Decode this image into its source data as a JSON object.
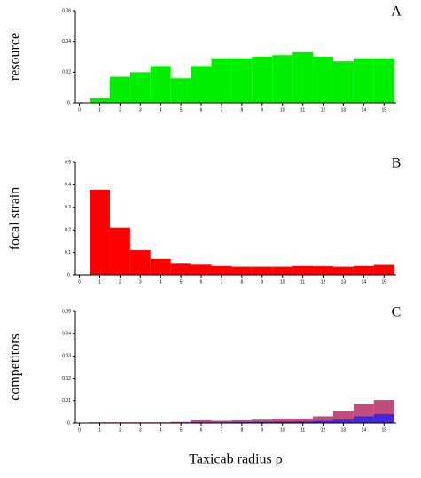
{
  "chart_data": [
    {
      "type": "histogram",
      "ylabel": "resource",
      "panel_label": "A",
      "bins": [
        0.5,
        1.5,
        2.5,
        3.5,
        4.5,
        5.5,
        6.5,
        7.5,
        8.5,
        9.5,
        10.5,
        11.5,
        12.5,
        13.5,
        14.5,
        15.5
      ],
      "series": [
        {
          "color": "#00ee00",
          "values": [
            0.003,
            0.017,
            0.02,
            0.024,
            0.016,
            0.024,
            0.029,
            0.029,
            0.03,
            0.031,
            0.033,
            0.03,
            0.027,
            0.029,
            0.029
          ]
        }
      ],
      "xlim": [
        -0.2,
        15.6
      ],
      "xticks": [
        0,
        1,
        2,
        3,
        4,
        5,
        6,
        7,
        8,
        9,
        10,
        11,
        12,
        13,
        14,
        15
      ],
      "ylim": [
        0,
        0.06
      ],
      "yticks": [
        {
          "value": 0,
          "label": "0."
        },
        0.02,
        0.04,
        0.06
      ]
    },
    {
      "type": "histogram",
      "ylabel": "focal strain",
      "panel_label": "B",
      "bins": [
        0.5,
        1.5,
        2.5,
        3.5,
        4.5,
        5.5,
        6.5,
        7.5,
        8.5,
        9.5,
        10.5,
        11.5,
        12.5,
        13.5,
        14.5,
        15.5
      ],
      "series": [
        {
          "color": "#ff0000",
          "values": [
            0.378,
            0.21,
            0.11,
            0.071,
            0.05,
            0.046,
            0.04,
            0.037,
            0.037,
            0.037,
            0.04,
            0.039,
            0.037,
            0.04,
            0.045
          ]
        }
      ],
      "xlim": [
        -0.2,
        15.6
      ],
      "xticks": [
        0,
        1,
        2,
        3,
        4,
        5,
        6,
        7,
        8,
        9,
        10,
        11,
        12,
        13,
        14,
        15
      ],
      "ylim": [
        0,
        0.5
      ],
      "yticks": [
        {
          "value": 0,
          "label": "0."
        },
        0.1,
        0.2,
        0.3,
        0.4,
        0.5
      ]
    },
    {
      "type": "histogram",
      "ylabel": "competitors",
      "panel_label": "C",
      "xlabel": "Taxicab radius ρ",
      "bins": [
        0.5,
        1.5,
        2.5,
        3.5,
        4.5,
        5.5,
        6.5,
        7.5,
        8.5,
        9.5,
        10.5,
        11.5,
        12.5,
        13.5,
        14.5,
        15.5
      ],
      "series": [
        {
          "color": "#b0205a",
          "values": [
            0.0003,
            0.0003,
            0.0003,
            0.0003,
            0.0005,
            0.0012,
            0.001,
            0.0012,
            0.0015,
            0.002,
            0.002,
            0.003,
            0.0052,
            0.0087,
            0.0103
          ]
        },
        {
          "color": "#2020ff",
          "values": [
            0.0001,
            0.0001,
            0.0001,
            0.0001,
            0.0002,
            0.0003,
            0.0003,
            0.0004,
            0.0005,
            0.0006,
            0.0007,
            0.001,
            0.0015,
            0.003,
            0.004
          ]
        }
      ],
      "xlim": [
        -0.2,
        15.6
      ],
      "xticks": [
        0,
        1,
        2,
        3,
        4,
        5,
        6,
        7,
        8,
        9,
        10,
        11,
        12,
        13,
        14,
        15
      ],
      "ylim": [
        0,
        0.05
      ],
      "yticks": [
        {
          "value": 0,
          "label": "0."
        },
        0.01,
        0.02,
        0.03,
        0.04,
        0.05
      ]
    }
  ]
}
